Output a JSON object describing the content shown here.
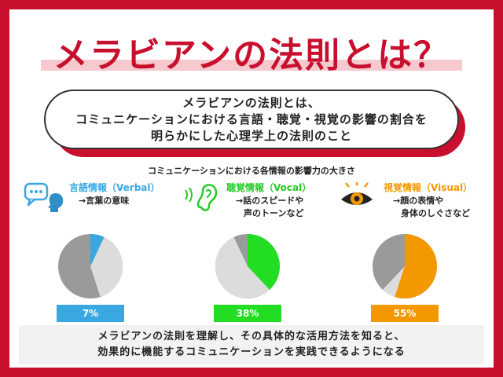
{
  "title": "メラビアンの法則とは？",
  "definition": {
    "line1": "メラビアンの法則とは、",
    "line2": "コミュニケーションにおける言語・聴覚・視覚の影響の割合を",
    "line3": "明らかにした心理学上の法則のこと"
  },
  "subtitle": "コミュニケーションにおける各情報の影響力の大きさ",
  "columns": [
    {
      "head": "言語情報（Verbal）",
      "desc1": "→言葉の意味",
      "desc2": "",
      "percent": "7%",
      "value": 7,
      "color": "#3aa8e0",
      "icon": "speech-bubble-head-icon"
    },
    {
      "head": "聴覚情報（Vocal）",
      "desc1": "→話のスピードや",
      "desc2": "声のトーンなど",
      "percent": "38%",
      "value": 38,
      "color": "#22dd22",
      "icon": "ear-icon"
    },
    {
      "head": "視覚情報（Visual）",
      "desc1": "→顔の表情や",
      "desc2": "身体のしぐさなど",
      "percent": "55%",
      "value": 55,
      "color": "#f39800",
      "icon": "eye-icon"
    }
  ],
  "footer": {
    "line1": "メラビアンの法則を理解し、その具体的な活用方法を知ると、",
    "line2": "効果的に機能するコミュニケーションを実践できるようになる"
  }
}
